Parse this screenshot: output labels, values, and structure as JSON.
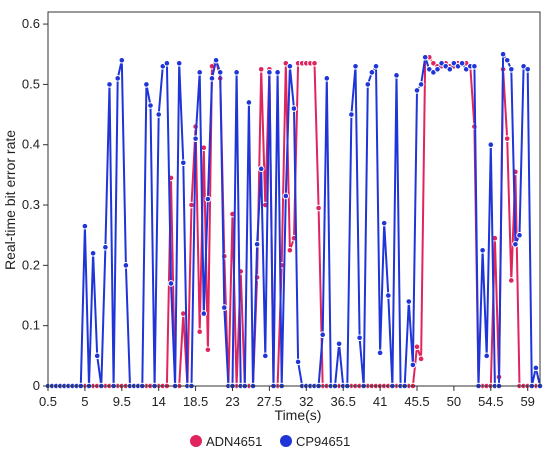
{
  "chart_data": {
    "type": "line",
    "title": "",
    "xlabel": "Time(s)",
    "ylabel": "Real-time bit error rate",
    "xlim": [
      0.5,
      60.5
    ],
    "ylim": [
      0,
      0.62
    ],
    "x_ticks": [
      0.5,
      5,
      9.5,
      14,
      18.5,
      23,
      27.5,
      32,
      36.5,
      41,
      45.5,
      50,
      54.5,
      59
    ],
    "x_tick_labels": [
      "0.5",
      "5",
      "9.5",
      "14",
      "18.5",
      "23",
      "27.5",
      "32",
      "36.5",
      "41",
      "45.5",
      "50",
      "54.5",
      "59"
    ],
    "y_ticks": [
      0,
      0.1,
      0.2,
      0.3,
      0.4,
      0.5,
      0.6
    ],
    "y_tick_labels": [
      "0",
      "0.1",
      "0.2",
      "0.3",
      "0.4",
      "0.5",
      "0.6"
    ],
    "grid": false,
    "legend_position": "bottom-center",
    "series": [
      {
        "name": "ADN4651",
        "color": "#e0245e",
        "points": [
          [
            0.5,
            0
          ],
          [
            1,
            0
          ],
          [
            1.5,
            0
          ],
          [
            2,
            0
          ],
          [
            2.5,
            0
          ],
          [
            3,
            0
          ],
          [
            3.5,
            0
          ],
          [
            4,
            0
          ],
          [
            4.5,
            0
          ],
          [
            5,
            0
          ],
          [
            5.5,
            0
          ],
          [
            6,
            0
          ],
          [
            6.5,
            0
          ],
          [
            7,
            0
          ],
          [
            7.5,
            0
          ],
          [
            8,
            0
          ],
          [
            8.5,
            0
          ],
          [
            9,
            0
          ],
          [
            9.5,
            0
          ],
          [
            10,
            0
          ],
          [
            10.5,
            0
          ],
          [
            11,
            0
          ],
          [
            11.5,
            0
          ],
          [
            12,
            0
          ],
          [
            12.5,
            0
          ],
          [
            13,
            0
          ],
          [
            13.5,
            0
          ],
          [
            14,
            0
          ],
          [
            14.5,
            0
          ],
          [
            15,
            0
          ],
          [
            15.5,
            0.345
          ],
          [
            16,
            0
          ],
          [
            16.5,
            0
          ],
          [
            17,
            0.12
          ],
          [
            17.5,
            0
          ],
          [
            18,
            0.3
          ],
          [
            18.5,
            0.43
          ],
          [
            19,
            0.09
          ],
          [
            19.5,
            0.395
          ],
          [
            20,
            0.06
          ],
          [
            20.5,
            0.53
          ],
          [
            21,
            0.54
          ],
          [
            21.5,
            0.51
          ],
          [
            22,
            0.215
          ],
          [
            22.5,
            0
          ],
          [
            23,
            0.285
          ],
          [
            23.5,
            0
          ],
          [
            24,
            0.19
          ],
          [
            24.5,
            0
          ],
          [
            25,
            0
          ],
          [
            25.5,
            0
          ],
          [
            26,
            0.18
          ],
          [
            26.5,
            0.525
          ],
          [
            27,
            0.3
          ],
          [
            27.5,
            0.525
          ],
          [
            28,
            0
          ],
          [
            28.5,
            0
          ],
          [
            29,
            0.2
          ],
          [
            29.5,
            0.535
          ],
          [
            30,
            0.225
          ],
          [
            30.5,
            0.245
          ],
          [
            31,
            0.535
          ],
          [
            31.5,
            0.535
          ],
          [
            32,
            0.535
          ],
          [
            32.5,
            0.535
          ],
          [
            33,
            0.535
          ],
          [
            33.5,
            0.295
          ],
          [
            34,
            0
          ],
          [
            34.5,
            0
          ],
          [
            35,
            0
          ],
          [
            35.5,
            0
          ],
          [
            36,
            0
          ],
          [
            36.5,
            0
          ],
          [
            37,
            0
          ],
          [
            37.5,
            0
          ],
          [
            38,
            0
          ],
          [
            38.5,
            0
          ],
          [
            39,
            0
          ],
          [
            39.5,
            0
          ],
          [
            40,
            0
          ],
          [
            40.5,
            0
          ],
          [
            41,
            0
          ],
          [
            41.5,
            0
          ],
          [
            42,
            0
          ],
          [
            42.5,
            0
          ],
          [
            43,
            0
          ],
          [
            43.5,
            0
          ],
          [
            44,
            0
          ],
          [
            44.5,
            0
          ],
          [
            45,
            0
          ],
          [
            45.5,
            0.065
          ],
          [
            46,
            0.045
          ],
          [
            46.5,
            0.545
          ],
          [
            47,
            0.545
          ],
          [
            47.5,
            0.535
          ],
          [
            48,
            0.53
          ],
          [
            48.5,
            0.53
          ],
          [
            49,
            0.535
          ],
          [
            49.5,
            0.53
          ],
          [
            50,
            0.53
          ],
          [
            50.5,
            0.535
          ],
          [
            51,
            0.535
          ],
          [
            51.5,
            0.535
          ],
          [
            52,
            0.53
          ],
          [
            52.5,
            0.43
          ],
          [
            53,
            0
          ],
          [
            53.5,
            0
          ],
          [
            54,
            0
          ],
          [
            54.5,
            0
          ],
          [
            55,
            0.245
          ],
          [
            55.5,
            0.015
          ],
          [
            56,
            0.525
          ],
          [
            56.5,
            0.41
          ],
          [
            57,
            0.175
          ],
          [
            57.5,
            0.355
          ],
          [
            58,
            0
          ],
          [
            58.5,
            0
          ],
          [
            59,
            0
          ],
          [
            59.5,
            0
          ],
          [
            60,
            0
          ],
          [
            60.5,
            0
          ]
        ]
      },
      {
        "name": "CP94651",
        "color": "#1f35d8",
        "points": [
          [
            0.5,
            0
          ],
          [
            1,
            0
          ],
          [
            1.5,
            0
          ],
          [
            2,
            0
          ],
          [
            2.5,
            0
          ],
          [
            3,
            0
          ],
          [
            3.5,
            0
          ],
          [
            4,
            0
          ],
          [
            4.5,
            0
          ],
          [
            5,
            0.265
          ],
          [
            5.5,
            0
          ],
          [
            6,
            0.22
          ],
          [
            6.5,
            0.05
          ],
          [
            7,
            0
          ],
          [
            7.5,
            0.23
          ],
          [
            8,
            0.5
          ],
          [
            8.5,
            0
          ],
          [
            9,
            0.51
          ],
          [
            9.5,
            0.54
          ],
          [
            10,
            0.2
          ],
          [
            10.5,
            0
          ],
          [
            11,
            0
          ],
          [
            11.5,
            0
          ],
          [
            12,
            0
          ],
          [
            12.5,
            0.5
          ],
          [
            13,
            0.465
          ],
          [
            13.5,
            0
          ],
          [
            14,
            0.45
          ],
          [
            14.5,
            0.53
          ],
          [
            15,
            0.535
          ],
          [
            15.5,
            0.17
          ],
          [
            16,
            0
          ],
          [
            16.5,
            0.535
          ],
          [
            17,
            0.37
          ],
          [
            17.5,
            0
          ],
          [
            18,
            0
          ],
          [
            18.5,
            0.41
          ],
          [
            19,
            0.52
          ],
          [
            19.5,
            0.12
          ],
          [
            20,
            0.31
          ],
          [
            20.5,
            0.51
          ],
          [
            21,
            0.54
          ],
          [
            21.5,
            0.52
          ],
          [
            22,
            0.13
          ],
          [
            22.5,
            0
          ],
          [
            23,
            0
          ],
          [
            23.5,
            0.52
          ],
          [
            24,
            0
          ],
          [
            24.5,
            0
          ],
          [
            25,
            0.47
          ],
          [
            25.5,
            0
          ],
          [
            26,
            0.235
          ],
          [
            26.5,
            0.36
          ],
          [
            27,
            0.05
          ],
          [
            27.5,
            0.52
          ],
          [
            28,
            0
          ],
          [
            28.5,
            0.52
          ],
          [
            29,
            0
          ],
          [
            29.5,
            0.315
          ],
          [
            30,
            0.53
          ],
          [
            30.5,
            0.46
          ],
          [
            31,
            0.04
          ],
          [
            31.5,
            0
          ],
          [
            32,
            0
          ],
          [
            32.5,
            0
          ],
          [
            33,
            0
          ],
          [
            33.5,
            0
          ],
          [
            34,
            0.085
          ],
          [
            34.5,
            0.51
          ],
          [
            35,
            0
          ],
          [
            35.5,
            0
          ],
          [
            36,
            0.07
          ],
          [
            36.5,
            0
          ],
          [
            37,
            0
          ],
          [
            37.5,
            0.45
          ],
          [
            38,
            0.53
          ],
          [
            38.5,
            0.08
          ],
          [
            39,
            0
          ],
          [
            39.5,
            0.5
          ],
          [
            40,
            0.52
          ],
          [
            40.5,
            0.53
          ],
          [
            41,
            0.055
          ],
          [
            41.5,
            0.27
          ],
          [
            42,
            0.15
          ],
          [
            42.5,
            0
          ],
          [
            43,
            0.515
          ],
          [
            43.5,
            0
          ],
          [
            44,
            0
          ],
          [
            44.5,
            0.14
          ],
          [
            45,
            0.035
          ],
          [
            45.5,
            0.49
          ],
          [
            46,
            0.5
          ],
          [
            46.5,
            0.545
          ],
          [
            47,
            0.525
          ],
          [
            47.5,
            0.52
          ],
          [
            48,
            0.525
          ],
          [
            48.5,
            0.535
          ],
          [
            49,
            0.53
          ],
          [
            49.5,
            0.525
          ],
          [
            50,
            0.535
          ],
          [
            50.5,
            0.53
          ],
          [
            51,
            0.535
          ],
          [
            51.5,
            0.525
          ],
          [
            52,
            0.53
          ],
          [
            52.5,
            0.53
          ],
          [
            53,
            0
          ],
          [
            53.5,
            0.225
          ],
          [
            54,
            0.05
          ],
          [
            54.5,
            0.4
          ],
          [
            55,
            0
          ],
          [
            55.5,
            0
          ],
          [
            56,
            0.55
          ],
          [
            56.5,
            0.54
          ],
          [
            57,
            0.525
          ],
          [
            57.5,
            0.235
          ],
          [
            58,
            0.25
          ],
          [
            58.5,
            0.53
          ],
          [
            59,
            0.525
          ],
          [
            59.5,
            0
          ],
          [
            60,
            0.03
          ],
          [
            60.5,
            0
          ]
        ]
      }
    ]
  }
}
